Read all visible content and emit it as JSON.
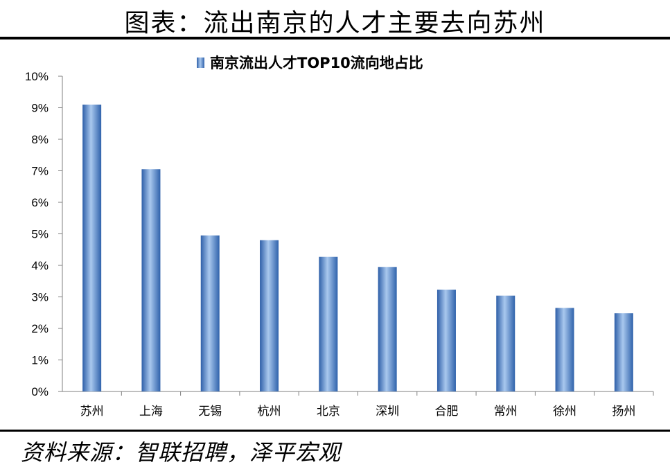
{
  "header": {
    "title": "图表：流出南京的人才主要去向苏州"
  },
  "footer": {
    "source": "资料来源：智联招聘，泽平宏观"
  },
  "chart_data": {
    "type": "bar",
    "title": "",
    "legend": {
      "position": "top-center"
    },
    "categories": [
      "苏州",
      "上海",
      "无锡",
      "杭州",
      "北京",
      "深圳",
      "合肥",
      "常州",
      "徐州",
      "扬州"
    ],
    "series": [
      {
        "name": "南京流出人才TOP10流向地占比",
        "values": [
          9.1,
          7.05,
          4.95,
          4.8,
          4.27,
          3.95,
          3.23,
          3.04,
          2.65,
          2.48
        ],
        "color": "#4f81bd"
      }
    ],
    "yticks": [
      "0%",
      "1%",
      "2%",
      "3%",
      "4%",
      "5%",
      "6%",
      "7%",
      "8%",
      "9%",
      "10%"
    ],
    "ylim": [
      0,
      10
    ],
    "grid": false,
    "xlabel": "",
    "ylabel": ""
  }
}
